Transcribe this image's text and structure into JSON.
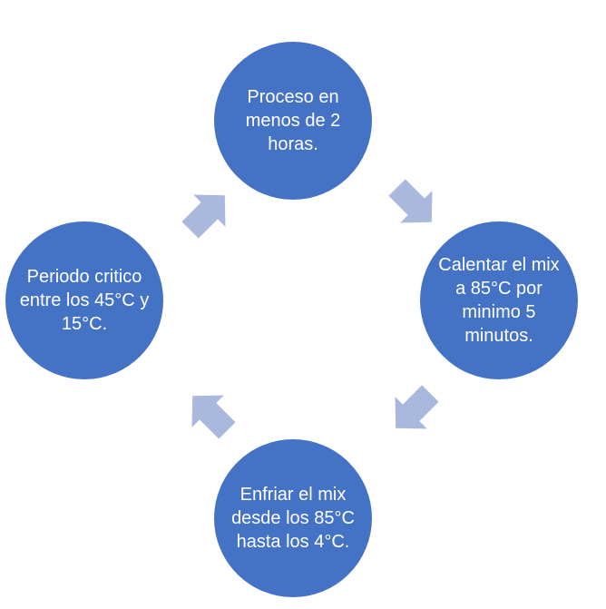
{
  "diagram": {
    "type": "cycle",
    "colors": {
      "node_fill": "#4472C4",
      "arrow_fill": "#A9B8DD",
      "text": "#FFFFFF"
    },
    "nodes": [
      {
        "id": "top",
        "label": "Proceso en menos de 2 horas."
      },
      {
        "id": "right",
        "label": "Calentar el mix a 85°C por minimo 5 minutos."
      },
      {
        "id": "bottom",
        "label": "Enfriar el mix desde los 85°C hasta los 4°C."
      },
      {
        "id": "left",
        "label": "Periodo critico entre los 45°C y 15°C."
      }
    ],
    "arrows": [
      {
        "name": "arrow-top-to-right",
        "direction": "down-right"
      },
      {
        "name": "arrow-right-to-bottom",
        "direction": "down-left"
      },
      {
        "name": "arrow-bottom-to-left",
        "direction": "up-left"
      },
      {
        "name": "arrow-left-to-top",
        "direction": "up-right"
      }
    ]
  }
}
